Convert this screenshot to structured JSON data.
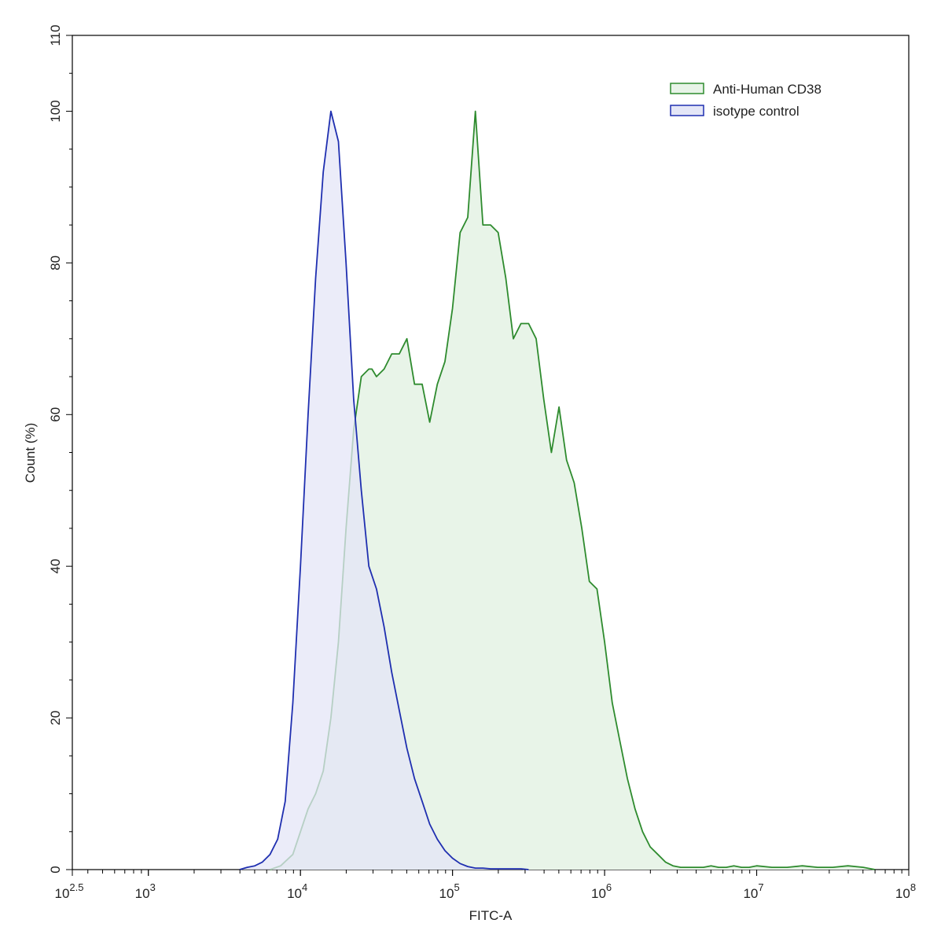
{
  "chart_data": {
    "type": "area",
    "title": "",
    "xlabel": "FITC-A",
    "ylabel": "Count  (%)",
    "x_scale": "log10",
    "xlim": [
      316.23,
      100000000
    ],
    "ylim": [
      0,
      110
    ],
    "x_ticks": [
      {
        "value": 316.23,
        "base": "10",
        "exp": "2.5"
      },
      {
        "value": 1000,
        "base": "10",
        "exp": "3"
      },
      {
        "value": 10000,
        "base": "10",
        "exp": "4"
      },
      {
        "value": 100000,
        "base": "10",
        "exp": "5"
      },
      {
        "value": 1000000,
        "base": "10",
        "exp": "6"
      },
      {
        "value": 10000000,
        "base": "10",
        "exp": "7"
      },
      {
        "value": 100000000,
        "base": "10",
        "exp": "8"
      }
    ],
    "y_ticks": [
      "0",
      "20",
      "40",
      "60",
      "80",
      "100",
      "110"
    ],
    "grid": false,
    "legend_position": "top-right",
    "series": [
      {
        "name": "Anti-Human CD38",
        "stroke": "#2e8b2e",
        "fill": "#e8f4e8",
        "x": [
          6310,
          7413,
          8913,
          10000,
          11220,
          12590,
          14130,
          15850,
          17780,
          19950,
          22390,
          25120,
          28180,
          29510,
          31620,
          35480,
          39810,
          44670,
          50120,
          56230,
          63100,
          70790,
          79430,
          89130,
          100000,
          112200,
          125900,
          141300,
          158500,
          177800,
          199500,
          223900,
          251200,
          281800,
          316200,
          354800,
          398100,
          446700,
          501200,
          562300,
          631000,
          707900,
          794300,
          891300,
          1000000,
          1122000,
          1259000,
          1413000,
          1585000,
          1778000,
          1995000,
          2239000,
          2512000,
          2818000,
          3162000,
          3548000,
          3981000,
          4467000,
          5012000,
          5623000,
          6310000,
          7079000,
          7943000,
          8913000,
          10000000,
          12590000,
          15850000,
          19950000,
          25120000,
          31620000,
          39810000,
          50120000,
          60000000
        ],
        "y": [
          0,
          0.5,
          2,
          5,
          8,
          10,
          13,
          20,
          30,
          45,
          58,
          65,
          66,
          66,
          65,
          66,
          68,
          68,
          70,
          64,
          64,
          59,
          64,
          67,
          74,
          84,
          86,
          100,
          85,
          85,
          84,
          78,
          70,
          72,
          72,
          70,
          62,
          55,
          61,
          54,
          51,
          45,
          38,
          37,
          30,
          22,
          17,
          12,
          8,
          5,
          3,
          2,
          1,
          0.5,
          0.3,
          0.3,
          0.3,
          0.3,
          0.5,
          0.3,
          0.3,
          0.5,
          0.3,
          0.3,
          0.5,
          0.3,
          0.3,
          0.5,
          0.3,
          0.3,
          0.5,
          0.3,
          0
        ]
      },
      {
        "name": "isotype control",
        "stroke": "#1f2fb0",
        "fill": "#e4e6f7",
        "x": [
          3981,
          4467,
          5012,
          5623,
          6310,
          7079,
          7943,
          8913,
          10000,
          11220,
          12590,
          14130,
          15850,
          17780,
          19950,
          22390,
          25120,
          28180,
          31620,
          35480,
          39810,
          44670,
          50120,
          56230,
          63100,
          70790,
          79430,
          89130,
          100000,
          112200,
          125900,
          141300,
          158500,
          177800,
          199500,
          223900,
          251200,
          281800,
          316200
        ],
        "y": [
          0,
          0.3,
          0.5,
          1,
          2,
          4,
          9,
          22,
          40,
          60,
          78,
          92,
          100,
          96,
          80,
          62,
          50,
          40,
          37,
          32,
          26,
          21,
          16,
          12,
          9,
          6,
          4,
          2.5,
          1.5,
          0.8,
          0.4,
          0.2,
          0.2,
          0.1,
          0.1,
          0.1,
          0.1,
          0.1,
          0
        ]
      }
    ]
  }
}
